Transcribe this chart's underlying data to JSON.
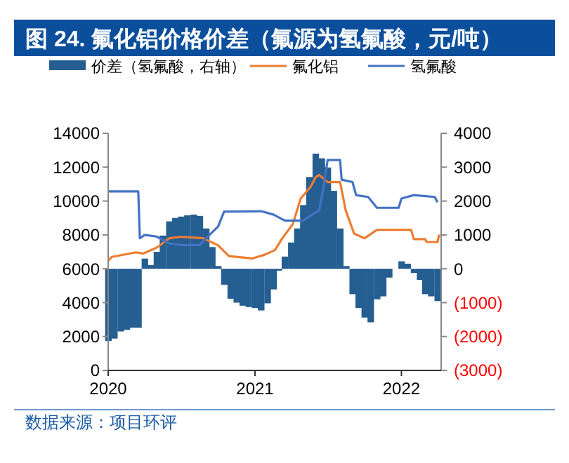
{
  "chart_data": {
    "type": "line",
    "title": "图 24. 氟化铝价格价差（氟源为氢氟酸，元/吨）",
    "xlim": [
      "2020-01-01",
      "2022-04-10"
    ],
    "xticks": [
      {
        "value": "2020-01-01",
        "label": "2020"
      },
      {
        "value": "2021-01-01",
        "label": "2021"
      },
      {
        "value": "2022-01-01",
        "label": "2022"
      }
    ],
    "ylim": [
      0,
      14000
    ],
    "yticks": [
      0,
      2000,
      4000,
      6000,
      8000,
      10000,
      12000,
      14000
    ],
    "y2lim": [
      -3000,
      4000
    ],
    "y2ticks": [
      {
        "value": -3000,
        "label": "(3000)"
      },
      {
        "value": -2000,
        "label": "(2000)"
      },
      {
        "value": -1000,
        "label": "(1000)"
      },
      0,
      1000,
      2000,
      3000,
      4000
    ],
    "legend": "top",
    "grid": false,
    "marker": "none",
    "line_style": "solid",
    "series": [
      {
        "name": "价差（氢氟酸，右轴）",
        "type": "bar",
        "axis": "y2",
        "color": "#255e91",
        "x": [
          "2020-01-01",
          "2020-01-16",
          "2020-02-01",
          "2020-02-16",
          "2020-03-01",
          "2020-03-16",
          "2020-04-01",
          "2020-04-16",
          "2020-05-01",
          "2020-05-16",
          "2020-06-01",
          "2020-06-16",
          "2020-07-01",
          "2020-07-16",
          "2020-08-01",
          "2020-08-16",
          "2020-09-01",
          "2020-09-16",
          "2020-10-01",
          "2020-10-16",
          "2020-11-01",
          "2020-11-16",
          "2020-12-01",
          "2020-12-16",
          "2021-01-01",
          "2021-01-16",
          "2021-02-01",
          "2021-02-16",
          "2021-03-01",
          "2021-03-16",
          "2021-04-01",
          "2021-04-16",
          "2021-05-01",
          "2021-05-16",
          "2021-06-01",
          "2021-06-16",
          "2021-07-01",
          "2021-07-16",
          "2021-08-01",
          "2021-08-16",
          "2021-09-01",
          "2021-09-16",
          "2021-10-01",
          "2021-10-16",
          "2021-11-01",
          "2021-11-16",
          "2021-12-01",
          "2021-12-16",
          "2022-01-01",
          "2022-01-16",
          "2022-02-01",
          "2022-02-16",
          "2022-03-01",
          "2022-03-16",
          "2022-04-01"
        ],
        "values": [
          -2130,
          -2060,
          -1850,
          -1800,
          -1740,
          -1740,
          300,
          110,
          500,
          980,
          1400,
          1500,
          1540,
          1580,
          1600,
          1560,
          1190,
          640,
          80,
          -470,
          -885,
          -1000,
          -1090,
          -1130,
          -1160,
          -1230,
          -1020,
          -610,
          -55,
          360,
          775,
          1190,
          1880,
          2710,
          3400,
          3260,
          2990,
          2300,
          1190,
          80,
          -750,
          -1160,
          -1440,
          -1580,
          -900,
          -815,
          -260,
          0,
          220,
          150,
          -125,
          -330,
          -750,
          -815,
          -955
        ]
      },
      {
        "name": "氟化铝",
        "color": "#ed7d31",
        "x": [
          "2020-01-01",
          "2020-01-10",
          "2020-03-10",
          "2020-03-28",
          "2020-05-01",
          "2020-06-01",
          "2020-07-01",
          "2020-08-25",
          "2020-10-01",
          "2020-10-28",
          "2020-12-25",
          "2021-01-25",
          "2021-02-20",
          "2021-03-10",
          "2021-04-05",
          "2021-04-25",
          "2021-05-20",
          "2021-06-01",
          "2021-06-10",
          "2021-07-01",
          "2021-08-01",
          "2021-08-15",
          "2021-09-05",
          "2021-10-01",
          "2021-11-01",
          "2022-01-25",
          "2022-02-01",
          "2022-03-01",
          "2022-03-05",
          "2022-04-01",
          "2022-04-05"
        ],
        "values": [
          6470,
          6700,
          6970,
          6900,
          7250,
          7800,
          7890,
          7800,
          7390,
          6750,
          6610,
          6830,
          7110,
          7800,
          8630,
          10150,
          10850,
          11400,
          11540,
          11120,
          11120,
          9460,
          8080,
          7800,
          8300,
          8300,
          7750,
          7750,
          7580,
          7580,
          8020
        ]
      },
      {
        "name": "氢氟酸",
        "color": "#4472c4",
        "x": [
          "2020-01-01",
          "2020-03-16",
          "2020-03-20",
          "2020-04-01",
          "2020-05-01",
          "2020-06-01",
          "2020-07-01",
          "2020-08-16",
          "2020-09-01",
          "2020-10-01",
          "2020-10-16",
          "2021-01-16",
          "2021-02-16",
          "2021-03-16",
          "2021-05-01",
          "2021-06-10",
          "2021-06-20",
          "2021-07-01",
          "2021-08-01",
          "2021-08-05",
          "2021-09-01",
          "2021-09-10",
          "2021-10-10",
          "2021-11-01",
          "2021-12-25",
          "2022-01-01",
          "2022-02-01",
          "2022-03-25",
          "2022-04-01"
        ],
        "values": [
          10570,
          10570,
          7800,
          8000,
          7900,
          7500,
          7400,
          7400,
          7800,
          8500,
          9380,
          9400,
          9200,
          8850,
          8850,
          9460,
          10700,
          12420,
          12420,
          11260,
          11120,
          10350,
          10240,
          9600,
          9600,
          10150,
          10350,
          10240,
          9930
        ]
      }
    ],
    "annotations": [
      "数据来源：项目环评"
    ]
  }
}
